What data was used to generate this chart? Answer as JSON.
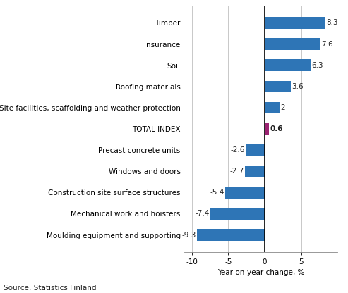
{
  "categories": [
    "Moulding equipment and supporting",
    "Mechanical work and hoisters",
    "Construction site surface structures",
    "Windows and doors",
    "Precast concrete units",
    "TOTAL INDEX",
    "Site facilities, scaffolding and weather protection",
    "Roofing materials",
    "Soil",
    "Insurance",
    "Timber"
  ],
  "values": [
    -9.3,
    -7.4,
    -5.4,
    -2.7,
    -2.6,
    0.6,
    2.0,
    3.6,
    6.3,
    7.6,
    8.3
  ],
  "bar_colors": [
    "#2E75B6",
    "#2E75B6",
    "#2E75B6",
    "#2E75B6",
    "#2E75B6",
    "#9B2372",
    "#2E75B6",
    "#2E75B6",
    "#2E75B6",
    "#2E75B6",
    "#2E75B6"
  ],
  "xlabel": "Year-on-year change, %",
  "xlim": [
    -11,
    10
  ],
  "xticks": [
    -10,
    -5,
    0,
    5
  ],
  "source_text": "Source: Statistics Finland",
  "background_color": "#ffffff",
  "grid_color": "#c8c8c8",
  "tick_fontsize": 7.5,
  "label_fontsize": 7.5,
  "bar_height": 0.55
}
